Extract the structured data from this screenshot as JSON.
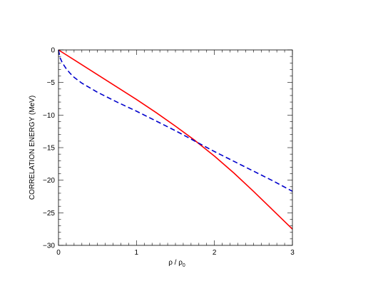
{
  "chart_data": {
    "type": "line",
    "title": "",
    "xlabel_main": "ρ / ρ",
    "xlabel_sub": "0",
    "ylabel": "CORRELATION ENERGY  (MeV)",
    "xlim": [
      0,
      3
    ],
    "ylim": [
      -30,
      0
    ],
    "x_ticks": [
      0,
      1,
      2,
      3
    ],
    "y_ticks": [
      0,
      -5,
      -10,
      -15,
      -20,
      -25,
      -30
    ],
    "x_tick_labels": [
      "0",
      "1",
      "2",
      "3"
    ],
    "y_tick_labels": [
      "0",
      "−5",
      "−10",
      "−15",
      "−20",
      "−25",
      "−30"
    ],
    "x_minor_step": 0.1,
    "y_minor_step": 1,
    "grid": false,
    "series": [
      {
        "color": "#ff0000",
        "dash": "solid",
        "x": [
          0,
          0.25,
          0.5,
          0.75,
          1.0,
          1.25,
          1.5,
          1.75,
          2.0,
          2.25,
          2.5,
          2.75,
          3.0
        ],
        "y": [
          0,
          -1.9,
          -3.8,
          -5.7,
          -7.6,
          -9.6,
          -11.7,
          -13.9,
          -16.3,
          -18.9,
          -21.7,
          -24.6,
          -27.5
        ]
      },
      {
        "color": "#0000cc",
        "dash": "dashed",
        "x": [
          0,
          0.02,
          0.05,
          0.1,
          0.15,
          0.2,
          0.3,
          0.4,
          0.5,
          0.75,
          1.0,
          1.25,
          1.5,
          1.75,
          2.0,
          2.25,
          2.5,
          2.75,
          3.0
        ],
        "y": [
          0,
          -1.2,
          -2.0,
          -2.9,
          -3.6,
          -4.2,
          -5.1,
          -5.8,
          -6.5,
          -8.0,
          -9.4,
          -10.9,
          -12.4,
          -14.0,
          -15.6,
          -17.1,
          -18.6,
          -20.1,
          -21.7
        ]
      }
    ]
  }
}
